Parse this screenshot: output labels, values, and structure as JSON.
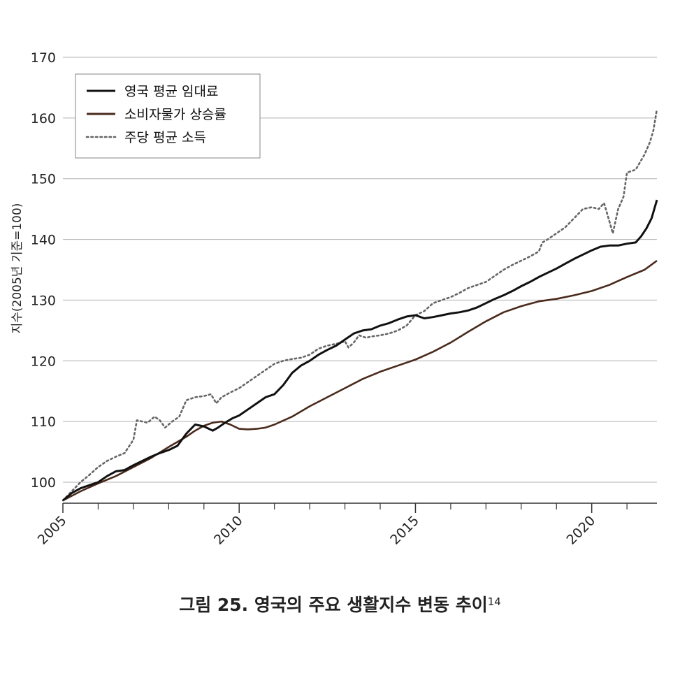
{
  "caption": {
    "text": "그림 25. 영국의 주요 생활지수 변동 추이",
    "note": "14"
  },
  "chart_data": {
    "type": "line",
    "ylabel": "지수(2005년 기준=100)",
    "xlabel": "",
    "xlim": [
      2005,
      2021.85
    ],
    "ylim": [
      96,
      170
    ],
    "yticks": [
      100,
      110,
      120,
      130,
      140,
      150,
      160,
      170
    ],
    "xticks": [
      2005,
      2010,
      2015,
      2020
    ],
    "xticks_minor": [
      2006,
      2007,
      2008,
      2009,
      2011,
      2012,
      2013,
      2014,
      2016,
      2017,
      2018,
      2019,
      2021
    ],
    "grid": "horizontal",
    "legend_position": "top-left",
    "series": [
      {
        "name": "영국 평균 임대료",
        "color": "#111111",
        "style": "solid",
        "points": [
          [
            2005.0,
            97.0
          ],
          [
            2005.25,
            98.2
          ],
          [
            2005.5,
            99.0
          ],
          [
            2005.75,
            99.5
          ],
          [
            2006.0,
            100.0
          ],
          [
            2006.25,
            101.0
          ],
          [
            2006.5,
            101.8
          ],
          [
            2006.75,
            102.0
          ],
          [
            2007.0,
            102.8
          ],
          [
            2007.25,
            103.5
          ],
          [
            2007.5,
            104.2
          ],
          [
            2007.75,
            104.8
          ],
          [
            2008.0,
            105.3
          ],
          [
            2008.25,
            106.0
          ],
          [
            2008.5,
            108.0
          ],
          [
            2008.75,
            109.5
          ],
          [
            2009.0,
            109.2
          ],
          [
            2009.25,
            108.5
          ],
          [
            2009.4,
            109.0
          ],
          [
            2009.6,
            109.8
          ],
          [
            2009.8,
            110.5
          ],
          [
            2010.0,
            111.0
          ],
          [
            2010.25,
            112.0
          ],
          [
            2010.5,
            113.0
          ],
          [
            2010.75,
            114.0
          ],
          [
            2011.0,
            114.5
          ],
          [
            2011.25,
            116.0
          ],
          [
            2011.5,
            118.0
          ],
          [
            2011.75,
            119.2
          ],
          [
            2012.0,
            120.0
          ],
          [
            2012.25,
            121.0
          ],
          [
            2012.5,
            121.8
          ],
          [
            2012.75,
            122.5
          ],
          [
            2013.0,
            123.5
          ],
          [
            2013.25,
            124.5
          ],
          [
            2013.5,
            125.0
          ],
          [
            2013.75,
            125.2
          ],
          [
            2014.0,
            125.8
          ],
          [
            2014.25,
            126.2
          ],
          [
            2014.5,
            126.8
          ],
          [
            2014.75,
            127.3
          ],
          [
            2015.0,
            127.5
          ],
          [
            2015.25,
            127.0
          ],
          [
            2015.5,
            127.2
          ],
          [
            2015.75,
            127.5
          ],
          [
            2016.0,
            127.8
          ],
          [
            2016.25,
            128.0
          ],
          [
            2016.5,
            128.3
          ],
          [
            2016.75,
            128.8
          ],
          [
            2017.0,
            129.5
          ],
          [
            2017.25,
            130.2
          ],
          [
            2017.5,
            130.8
          ],
          [
            2017.75,
            131.5
          ],
          [
            2018.0,
            132.3
          ],
          [
            2018.25,
            133.0
          ],
          [
            2018.5,
            133.8
          ],
          [
            2018.75,
            134.5
          ],
          [
            2019.0,
            135.2
          ],
          [
            2019.25,
            136.0
          ],
          [
            2019.5,
            136.8
          ],
          [
            2019.75,
            137.5
          ],
          [
            2020.0,
            138.2
          ],
          [
            2020.25,
            138.8
          ],
          [
            2020.5,
            139.0
          ],
          [
            2020.75,
            139.0
          ],
          [
            2021.0,
            139.3
          ],
          [
            2021.25,
            139.5
          ],
          [
            2021.4,
            140.5
          ],
          [
            2021.55,
            141.8
          ],
          [
            2021.7,
            143.5
          ],
          [
            2021.85,
            146.5
          ]
        ]
      },
      {
        "name": "소비자물가 상승률",
        "color": "#4a2a1c",
        "style": "solid",
        "points": [
          [
            2005.0,
            97.0
          ],
          [
            2005.5,
            98.5
          ],
          [
            2006.0,
            99.8
          ],
          [
            2006.5,
            101.0
          ],
          [
            2007.0,
            102.5
          ],
          [
            2007.5,
            104.0
          ],
          [
            2008.0,
            105.8
          ],
          [
            2008.5,
            107.5
          ],
          [
            2008.75,
            108.5
          ],
          [
            2009.0,
            109.3
          ],
          [
            2009.25,
            109.8
          ],
          [
            2009.5,
            110.0
          ],
          [
            2009.75,
            109.5
          ],
          [
            2010.0,
            108.8
          ],
          [
            2010.25,
            108.7
          ],
          [
            2010.5,
            108.8
          ],
          [
            2010.75,
            109.0
          ],
          [
            2011.0,
            109.5
          ],
          [
            2011.5,
            110.8
          ],
          [
            2012.0,
            112.5
          ],
          [
            2012.5,
            114.0
          ],
          [
            2013.0,
            115.5
          ],
          [
            2013.5,
            117.0
          ],
          [
            2014.0,
            118.2
          ],
          [
            2014.5,
            119.2
          ],
          [
            2015.0,
            120.2
          ],
          [
            2015.5,
            121.5
          ],
          [
            2016.0,
            123.0
          ],
          [
            2016.5,
            124.8
          ],
          [
            2017.0,
            126.5
          ],
          [
            2017.5,
            128.0
          ],
          [
            2018.0,
            129.0
          ],
          [
            2018.5,
            129.8
          ],
          [
            2019.0,
            130.2
          ],
          [
            2019.5,
            130.8
          ],
          [
            2020.0,
            131.5
          ],
          [
            2020.5,
            132.5
          ],
          [
            2021.0,
            133.8
          ],
          [
            2021.5,
            135.0
          ],
          [
            2021.85,
            136.5
          ]
        ]
      },
      {
        "name": "주당 평균 소득",
        "color": "#666666",
        "style": "dotted",
        "points": [
          [
            2005.0,
            97.0
          ],
          [
            2005.25,
            98.5
          ],
          [
            2005.5,
            100.0
          ],
          [
            2005.75,
            101.2
          ],
          [
            2006.0,
            102.5
          ],
          [
            2006.25,
            103.5
          ],
          [
            2006.5,
            104.2
          ],
          [
            2006.75,
            104.8
          ],
          [
            2007.0,
            107.0
          ],
          [
            2007.1,
            110.2
          ],
          [
            2007.25,
            110.0
          ],
          [
            2007.4,
            109.8
          ],
          [
            2007.6,
            110.8
          ],
          [
            2007.75,
            110.2
          ],
          [
            2007.9,
            109.0
          ],
          [
            2008.1,
            110.0
          ],
          [
            2008.3,
            110.8
          ],
          [
            2008.5,
            113.5
          ],
          [
            2008.75,
            114.0
          ],
          [
            2009.0,
            114.2
          ],
          [
            2009.2,
            114.5
          ],
          [
            2009.35,
            113.0
          ],
          [
            2009.5,
            114.0
          ],
          [
            2009.75,
            114.8
          ],
          [
            2010.0,
            115.5
          ],
          [
            2010.25,
            116.5
          ],
          [
            2010.5,
            117.5
          ],
          [
            2010.75,
            118.5
          ],
          [
            2011.0,
            119.5
          ],
          [
            2011.25,
            120.0
          ],
          [
            2011.5,
            120.3
          ],
          [
            2011.75,
            120.5
          ],
          [
            2012.0,
            121.0
          ],
          [
            2012.25,
            122.0
          ],
          [
            2012.5,
            122.5
          ],
          [
            2012.75,
            122.8
          ],
          [
            2013.0,
            123.2
          ],
          [
            2013.1,
            122.2
          ],
          [
            2013.25,
            123.0
          ],
          [
            2013.4,
            124.2
          ],
          [
            2013.6,
            123.8
          ],
          [
            2013.75,
            124.0
          ],
          [
            2014.0,
            124.2
          ],
          [
            2014.25,
            124.5
          ],
          [
            2014.5,
            125.0
          ],
          [
            2014.75,
            125.8
          ],
          [
            2015.0,
            127.5
          ],
          [
            2015.25,
            128.2
          ],
          [
            2015.5,
            129.5
          ],
          [
            2015.75,
            130.0
          ],
          [
            2016.0,
            130.5
          ],
          [
            2016.25,
            131.2
          ],
          [
            2016.5,
            132.0
          ],
          [
            2016.75,
            132.5
          ],
          [
            2017.0,
            133.0
          ],
          [
            2017.25,
            134.0
          ],
          [
            2017.5,
            135.0
          ],
          [
            2017.75,
            135.8
          ],
          [
            2018.0,
            136.5
          ],
          [
            2018.25,
            137.2
          ],
          [
            2018.5,
            138.0
          ],
          [
            2018.6,
            139.5
          ],
          [
            2018.75,
            140.0
          ],
          [
            2019.0,
            141.0
          ],
          [
            2019.25,
            142.0
          ],
          [
            2019.5,
            143.5
          ],
          [
            2019.75,
            145.0
          ],
          [
            2020.0,
            145.3
          ],
          [
            2020.2,
            145.0
          ],
          [
            2020.35,
            146.0
          ],
          [
            2020.5,
            143.0
          ],
          [
            2020.6,
            141.0
          ],
          [
            2020.75,
            145.0
          ],
          [
            2020.9,
            147.0
          ],
          [
            2021.0,
            151.0
          ],
          [
            2021.25,
            151.5
          ],
          [
            2021.5,
            154.0
          ],
          [
            2021.65,
            156.0
          ],
          [
            2021.75,
            158.0
          ],
          [
            2021.85,
            161.5
          ]
        ]
      }
    ]
  }
}
